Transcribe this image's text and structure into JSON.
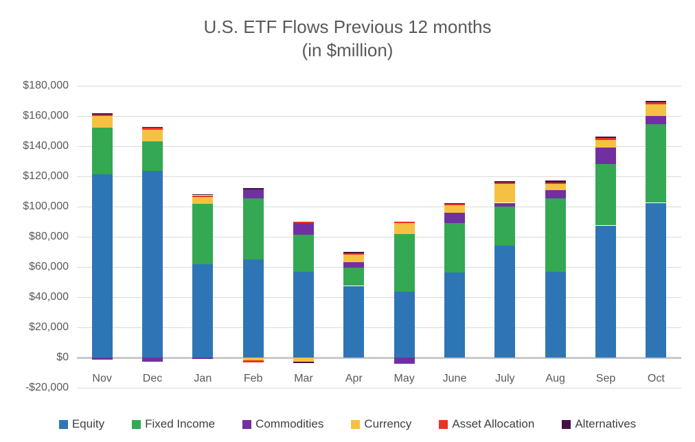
{
  "title": {
    "line1": "U.S. ETF Flows Previous 12 months",
    "line2": "(in $million)"
  },
  "chart_data": {
    "type": "bar",
    "stacked": true,
    "title": "U.S. ETF Flows Previous 12 months (in $million)",
    "xlabel": "",
    "ylabel": "",
    "ylim": [
      -20000,
      180000
    ],
    "ytick_step": 20000,
    "ytick_labels_top_to_bottom": [
      "$180,000",
      "$160,000",
      "$140,000",
      "$120,000",
      "$100,000",
      "$80,000",
      "$60,000",
      "$40,000",
      "$20,000",
      "$0",
      "-$20,000"
    ],
    "grid": true,
    "legend_position": "bottom",
    "categories": [
      "Nov",
      "Dec",
      "Jan",
      "Feb",
      "Mar",
      "Apr",
      "May",
      "June",
      "July",
      "Aug",
      "Sep",
      "Oct"
    ],
    "series": [
      {
        "name": "Equity",
        "color": "#2E75B6",
        "values": [
          121500,
          123500,
          62000,
          65000,
          57000,
          47500,
          43500,
          56500,
          74000,
          57000,
          87500,
          102500
        ]
      },
      {
        "name": "Fixed Income",
        "color": "#34A853",
        "values": [
          31000,
          19500,
          40000,
          40500,
          24500,
          12000,
          38500,
          32500,
          26000,
          48500,
          40500,
          52000
        ]
      },
      {
        "name": "Commodities",
        "color": "#7030A0",
        "values": [
          -1500,
          -2500,
          -1000,
          6000,
          7500,
          3500,
          -4000,
          7000,
          2500,
          5300,
          11000,
          5300
        ]
      },
      {
        "name": "Currency",
        "color": "#F6C142",
        "values": [
          7500,
          8000,
          4500,
          -2000,
          -2500,
          5000,
          7000,
          4900,
          12300,
          4400,
          5300,
          7900
        ]
      },
      {
        "name": "Asset Allocation",
        "color": "#EA3223",
        "values": [
          1000,
          1100,
          1000,
          -1000,
          900,
          900,
          800,
          700,
          900,
          900,
          1000,
          1200
        ]
      },
      {
        "name": "Alternatives",
        "color": "#431245",
        "values": [
          900,
          700,
          900,
          900,
          -1000,
          900,
          0,
          800,
          900,
          1200,
          1200,
          1100
        ]
      }
    ]
  }
}
